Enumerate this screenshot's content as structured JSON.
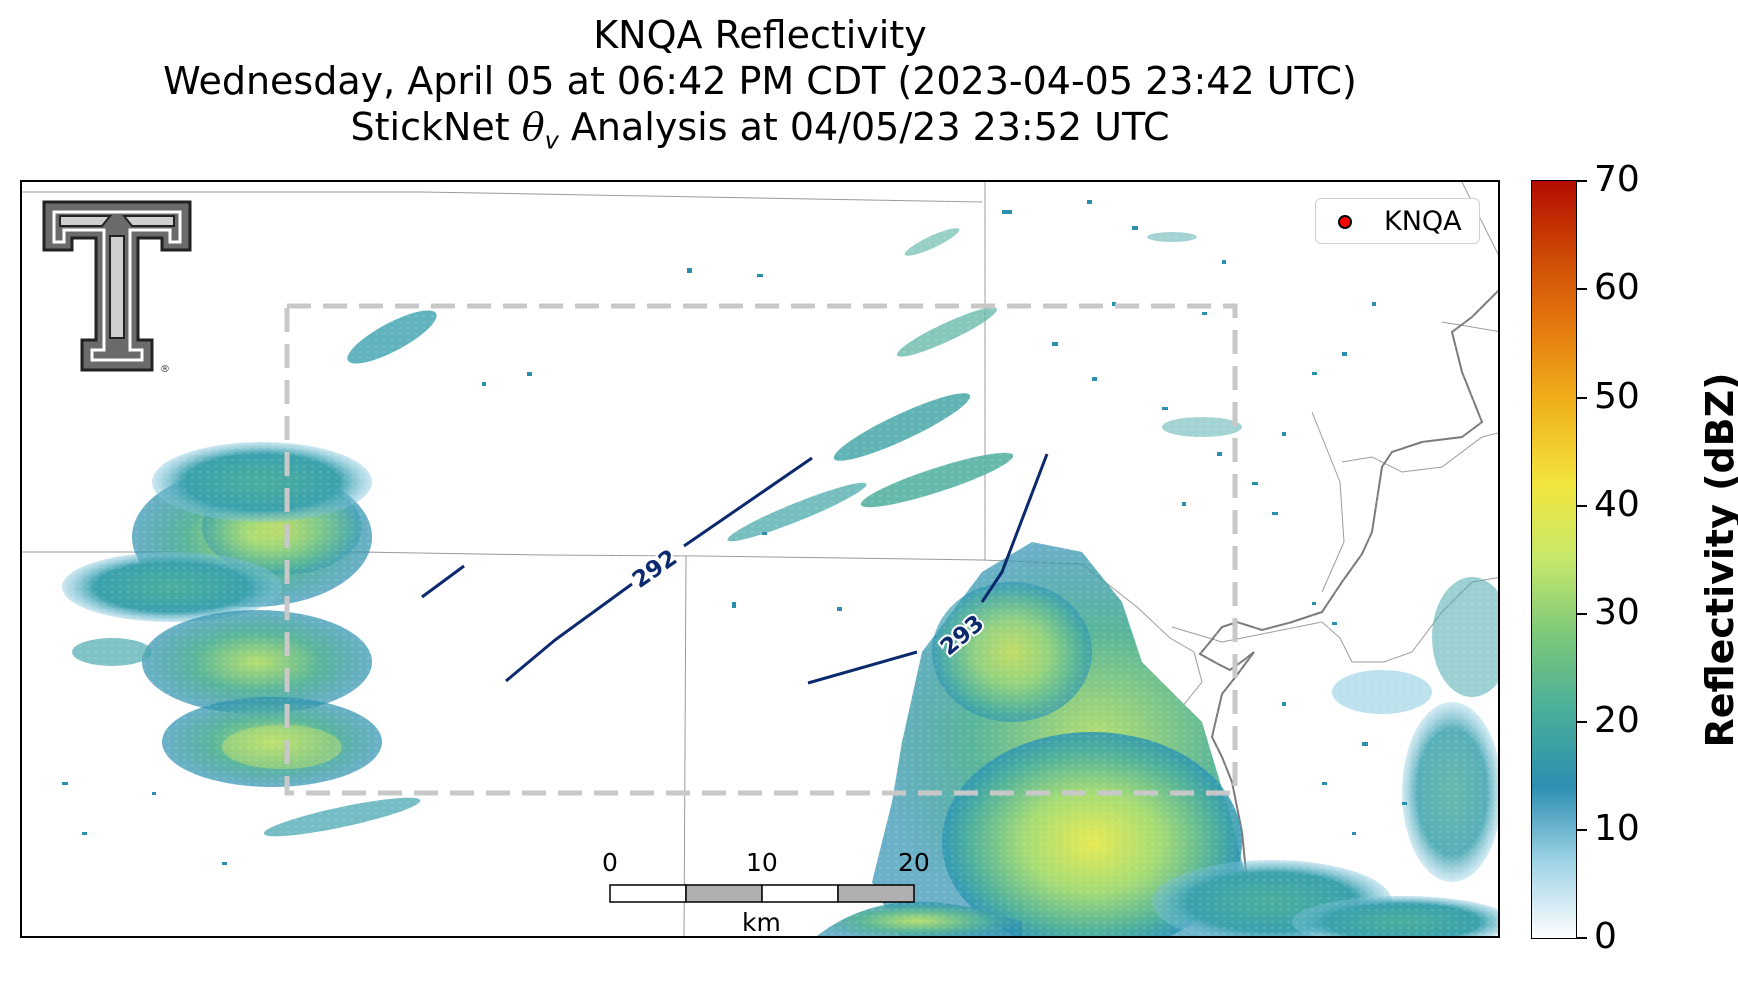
{
  "title": {
    "line1": "KNQA Reflectivity",
    "line2": "Wednesday, April 05 at 06:42 PM CDT (2023-04-05 23:42 UTC)",
    "line3_prefix": "StickNet ",
    "line3_symbol": "θ",
    "line3_subscript": "v",
    "line3_suffix": " Analysis at 04/05/23 23:52 UTC"
  },
  "legend": {
    "marker_color": "#ff0000",
    "label": "KNQA"
  },
  "logo": {
    "name": "texas-tech-double-t-logo",
    "registered_mark": "®"
  },
  "colorbar": {
    "title": "Reflectivity (dBZ)",
    "ticks": [
      "0",
      "10",
      "20",
      "30",
      "40",
      "50",
      "60",
      "70"
    ],
    "range": [
      0,
      70
    ],
    "colors": [
      "#ffffff",
      "#9fd3e6",
      "#2c8fb0",
      "#4aae9a",
      "#7cc87a",
      "#c6e86b",
      "#f2e53d",
      "#f0b41c",
      "#e57e0f",
      "#cf4a06",
      "#b30c00"
    ]
  },
  "scalebar": {
    "ticks": [
      "0",
      "10",
      "20"
    ],
    "unit": "km",
    "segment_colors": [
      "#ffffff",
      "#b0b0b0",
      "#ffffff",
      "#b0b0b0"
    ]
  },
  "contours": {
    "color": "#0b2a6e",
    "labels": [
      "292",
      "293"
    ]
  },
  "analysis_box": {
    "color": "#c8c8c8",
    "style": "dashed"
  }
}
